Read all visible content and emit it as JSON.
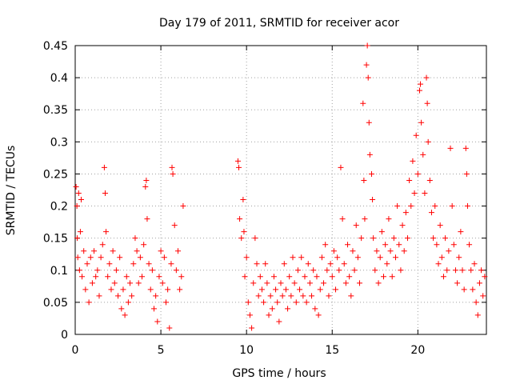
{
  "chart_data": {
    "type": "scatter",
    "title": "Day 179 of 2011, SRMTID for receiver acor",
    "xlabel": "GPS time / hours",
    "ylabel": "SRMTID / TECUs",
    "xlim": [
      0,
      24
    ],
    "ylim": [
      0,
      0.45
    ],
    "xticks": [
      0,
      5,
      10,
      15,
      20
    ],
    "xtick_labels": [
      "0",
      "5",
      "10",
      "15",
      "20"
    ],
    "yticks": [
      0,
      0.05,
      0.1,
      0.15,
      0.2,
      0.25,
      0.3,
      0.35,
      0.4,
      0.45
    ],
    "ytick_labels": [
      "0",
      "0.05",
      "0.1",
      "0.15",
      "0.2",
      "0.25",
      "0.3",
      "0.35",
      "0.4",
      "0.45"
    ],
    "grid": true,
    "marker": "+",
    "color": "#ff0000",
    "series": [
      {
        "name": "SRMTID",
        "points": [
          [
            0.05,
            0.23
          ],
          [
            0.1,
            0.2
          ],
          [
            0.12,
            0.15
          ],
          [
            0.15,
            0.12
          ],
          [
            0.2,
            0.22
          ],
          [
            0.25,
            0.1
          ],
          [
            0.3,
            0.16
          ],
          [
            0.35,
            0.21
          ],
          [
            0.4,
            0.09
          ],
          [
            0.5,
            0.13
          ],
          [
            0.6,
            0.07
          ],
          [
            0.7,
            0.11
          ],
          [
            0.8,
            0.05
          ],
          [
            0.9,
            0.12
          ],
          [
            1.0,
            0.08
          ],
          [
            1.1,
            0.13
          ],
          [
            1.2,
            0.09
          ],
          [
            1.3,
            0.1
          ],
          [
            1.4,
            0.06
          ],
          [
            1.5,
            0.12
          ],
          [
            1.6,
            0.14
          ],
          [
            1.7,
            0.26
          ],
          [
            1.75,
            0.22
          ],
          [
            1.8,
            0.16
          ],
          [
            1.9,
            0.09
          ],
          [
            2.0,
            0.11
          ],
          [
            2.1,
            0.07
          ],
          [
            2.2,
            0.13
          ],
          [
            2.3,
            0.08
          ],
          [
            2.4,
            0.1
          ],
          [
            2.5,
            0.06
          ],
          [
            2.6,
            0.12
          ],
          [
            2.7,
            0.04
          ],
          [
            2.8,
            0.07
          ],
          [
            2.9,
            0.03
          ],
          [
            3.0,
            0.09
          ],
          [
            3.1,
            0.05
          ],
          [
            3.2,
            0.08
          ],
          [
            3.3,
            0.06
          ],
          [
            3.4,
            0.11
          ],
          [
            3.5,
            0.15
          ],
          [
            3.6,
            0.13
          ],
          [
            3.7,
            0.08
          ],
          [
            3.8,
            0.12
          ],
          [
            3.9,
            0.09
          ],
          [
            4.0,
            0.14
          ],
          [
            4.1,
            0.23
          ],
          [
            4.15,
            0.24
          ],
          [
            4.2,
            0.18
          ],
          [
            4.3,
            0.11
          ],
          [
            4.4,
            0.07
          ],
          [
            4.5,
            0.1
          ],
          [
            4.6,
            0.04
          ],
          [
            4.7,
            0.06
          ],
          [
            4.8,
            0.02
          ],
          [
            4.9,
            0.09
          ],
          [
            5.0,
            0.13
          ],
          [
            5.1,
            0.08
          ],
          [
            5.2,
            0.12
          ],
          [
            5.3,
            0.05
          ],
          [
            5.4,
            0.07
          ],
          [
            5.5,
            0.01
          ],
          [
            5.6,
            0.11
          ],
          [
            5.65,
            0.26
          ],
          [
            5.7,
            0.25
          ],
          [
            5.8,
            0.17
          ],
          [
            5.9,
            0.1
          ],
          [
            6.0,
            0.13
          ],
          [
            6.1,
            0.07
          ],
          [
            6.2,
            0.09
          ],
          [
            6.3,
            0.2
          ],
          [
            9.5,
            0.27
          ],
          [
            9.55,
            0.26
          ],
          [
            9.6,
            0.18
          ],
          [
            9.7,
            0.15
          ],
          [
            9.8,
            0.21
          ],
          [
            9.85,
            0.16
          ],
          [
            9.9,
            0.09
          ],
          [
            10.0,
            0.12
          ],
          [
            10.1,
            0.05
          ],
          [
            10.2,
            0.03
          ],
          [
            10.3,
            0.01
          ],
          [
            10.4,
            0.08
          ],
          [
            10.5,
            0.15
          ],
          [
            10.6,
            0.11
          ],
          [
            10.7,
            0.06
          ],
          [
            10.8,
            0.09
          ],
          [
            10.9,
            0.07
          ],
          [
            11.0,
            0.05
          ],
          [
            11.1,
            0.11
          ],
          [
            11.2,
            0.08
          ],
          [
            11.3,
            0.03
          ],
          [
            11.4,
            0.06
          ],
          [
            11.5,
            0.04
          ],
          [
            11.6,
            0.09
          ],
          [
            11.7,
            0.07
          ],
          [
            11.8,
            0.05
          ],
          [
            11.9,
            0.02
          ],
          [
            12.0,
            0.08
          ],
          [
            12.1,
            0.06
          ],
          [
            12.2,
            0.11
          ],
          [
            12.3,
            0.07
          ],
          [
            12.4,
            0.04
          ],
          [
            12.5,
            0.09
          ],
          [
            12.6,
            0.06
          ],
          [
            12.7,
            0.12
          ],
          [
            12.8,
            0.08
          ],
          [
            12.9,
            0.05
          ],
          [
            13.0,
            0.1
          ],
          [
            13.1,
            0.07
          ],
          [
            13.2,
            0.12
          ],
          [
            13.3,
            0.06
          ],
          [
            13.4,
            0.09
          ],
          [
            13.5,
            0.05
          ],
          [
            13.6,
            0.11
          ],
          [
            13.7,
            0.08
          ],
          [
            13.8,
            0.06
          ],
          [
            13.9,
            0.1
          ],
          [
            14.0,
            0.04
          ],
          [
            14.1,
            0.09
          ],
          [
            14.2,
            0.03
          ],
          [
            14.3,
            0.07
          ],
          [
            14.4,
            0.12
          ],
          [
            14.5,
            0.08
          ],
          [
            14.6,
            0.14
          ],
          [
            14.7,
            0.1
          ],
          [
            14.8,
            0.06
          ],
          [
            14.9,
            0.11
          ],
          [
            15.0,
            0.09
          ],
          [
            15.1,
            0.13
          ],
          [
            15.2,
            0.07
          ],
          [
            15.3,
            0.12
          ],
          [
            15.4,
            0.1
          ],
          [
            15.5,
            0.26
          ],
          [
            15.6,
            0.18
          ],
          [
            15.7,
            0.11
          ],
          [
            15.8,
            0.08
          ],
          [
            15.9,
            0.14
          ],
          [
            16.0,
            0.09
          ],
          [
            16.1,
            0.06
          ],
          [
            16.2,
            0.13
          ],
          [
            16.3,
            0.1
          ],
          [
            16.4,
            0.17
          ],
          [
            16.5,
            0.12
          ],
          [
            16.6,
            0.08
          ],
          [
            16.7,
            0.15
          ],
          [
            16.8,
            0.36
          ],
          [
            16.85,
            0.24
          ],
          [
            16.9,
            0.18
          ],
          [
            17.0,
            0.42
          ],
          [
            17.05,
            0.45
          ],
          [
            17.1,
            0.4
          ],
          [
            17.15,
            0.33
          ],
          [
            17.2,
            0.28
          ],
          [
            17.3,
            0.25
          ],
          [
            17.35,
            0.21
          ],
          [
            17.4,
            0.15
          ],
          [
            17.5,
            0.1
          ],
          [
            17.6,
            0.13
          ],
          [
            17.7,
            0.08
          ],
          [
            17.8,
            0.12
          ],
          [
            17.9,
            0.16
          ],
          [
            18.0,
            0.09
          ],
          [
            18.1,
            0.14
          ],
          [
            18.2,
            0.11
          ],
          [
            18.3,
            0.18
          ],
          [
            18.4,
            0.13
          ],
          [
            18.5,
            0.09
          ],
          [
            18.6,
            0.15
          ],
          [
            18.7,
            0.12
          ],
          [
            18.8,
            0.2
          ],
          [
            18.9,
            0.14
          ],
          [
            19.0,
            0.1
          ],
          [
            19.1,
            0.17
          ],
          [
            19.2,
            0.13
          ],
          [
            19.3,
            0.19
          ],
          [
            19.4,
            0.15
          ],
          [
            19.5,
            0.24
          ],
          [
            19.6,
            0.2
          ],
          [
            19.7,
            0.27
          ],
          [
            19.8,
            0.22
          ],
          [
            19.9,
            0.31
          ],
          [
            20.0,
            0.25
          ],
          [
            20.1,
            0.38
          ],
          [
            20.15,
            0.39
          ],
          [
            20.2,
            0.33
          ],
          [
            20.3,
            0.28
          ],
          [
            20.4,
            0.22
          ],
          [
            20.5,
            0.4
          ],
          [
            20.55,
            0.36
          ],
          [
            20.6,
            0.3
          ],
          [
            20.7,
            0.24
          ],
          [
            20.8,
            0.19
          ],
          [
            20.9,
            0.15
          ],
          [
            21.0,
            0.2
          ],
          [
            21.1,
            0.14
          ],
          [
            21.2,
            0.11
          ],
          [
            21.3,
            0.17
          ],
          [
            21.4,
            0.12
          ],
          [
            21.5,
            0.09
          ],
          [
            21.6,
            0.15
          ],
          [
            21.7,
            0.1
          ],
          [
            21.8,
            0.13
          ],
          [
            21.9,
            0.29
          ],
          [
            22.0,
            0.2
          ],
          [
            22.1,
            0.14
          ],
          [
            22.2,
            0.1
          ],
          [
            22.3,
            0.08
          ],
          [
            22.4,
            0.12
          ],
          [
            22.5,
            0.16
          ],
          [
            22.6,
            0.1
          ],
          [
            22.7,
            0.07
          ],
          [
            22.8,
            0.29
          ],
          [
            22.85,
            0.25
          ],
          [
            22.9,
            0.2
          ],
          [
            23.0,
            0.14
          ],
          [
            23.1,
            0.1
          ],
          [
            23.2,
            0.07
          ],
          [
            23.3,
            0.11
          ],
          [
            23.4,
            0.05
          ],
          [
            23.5,
            0.03
          ],
          [
            23.6,
            0.08
          ],
          [
            23.7,
            0.1
          ],
          [
            23.8,
            0.06
          ],
          [
            23.9,
            0.09
          ]
        ]
      }
    ]
  }
}
